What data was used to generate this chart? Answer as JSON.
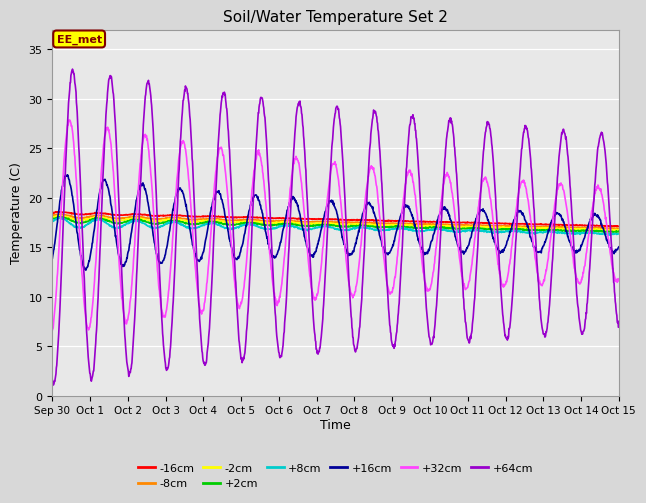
{
  "title": "Soil/Water Temperature Set 2",
  "xlabel": "Time",
  "ylabel": "Temperature (C)",
  "ylim": [
    0,
    37
  ],
  "yticks": [
    0,
    5,
    10,
    15,
    20,
    25,
    30,
    35
  ],
  "plot_bg_color": "#e8e8e8",
  "fig_bg_color": "#d8d8d8",
  "annotation_text": "EE_met",
  "annotation_bg": "#ffff00",
  "annotation_border": "#800000",
  "series_order": [
    "-16cm",
    "-8cm",
    "-2cm",
    "+2cm",
    "+8cm",
    "+16cm",
    "+32cm",
    "+64cm"
  ],
  "series": {
    "-16cm": {
      "color": "#ff0000",
      "lw": 1.2
    },
    "-8cm": {
      "color": "#ff8800",
      "lw": 1.2
    },
    "-2cm": {
      "color": "#ffff00",
      "lw": 1.2
    },
    "+2cm": {
      "color": "#00cc00",
      "lw": 1.2
    },
    "+8cm": {
      "color": "#00cccc",
      "lw": 1.2
    },
    "+16cm": {
      "color": "#000099",
      "lw": 1.2
    },
    "+32cm": {
      "color": "#ff44ff",
      "lw": 1.2
    },
    "+64cm": {
      "color": "#9900cc",
      "lw": 1.2
    }
  },
  "xtick_labels": [
    "Sep 30",
    "Oct 1",
    "Oct 2",
    "Oct 3",
    "Oct 4",
    "Oct 5",
    "Oct 6",
    "Oct 7",
    "Oct 8",
    "Oct 9",
    "Oct 10",
    "Oct 11",
    "Oct 12",
    "Oct 13",
    "Oct 14",
    "Oct 15"
  ],
  "n_points": 1440,
  "duration_days": 15
}
